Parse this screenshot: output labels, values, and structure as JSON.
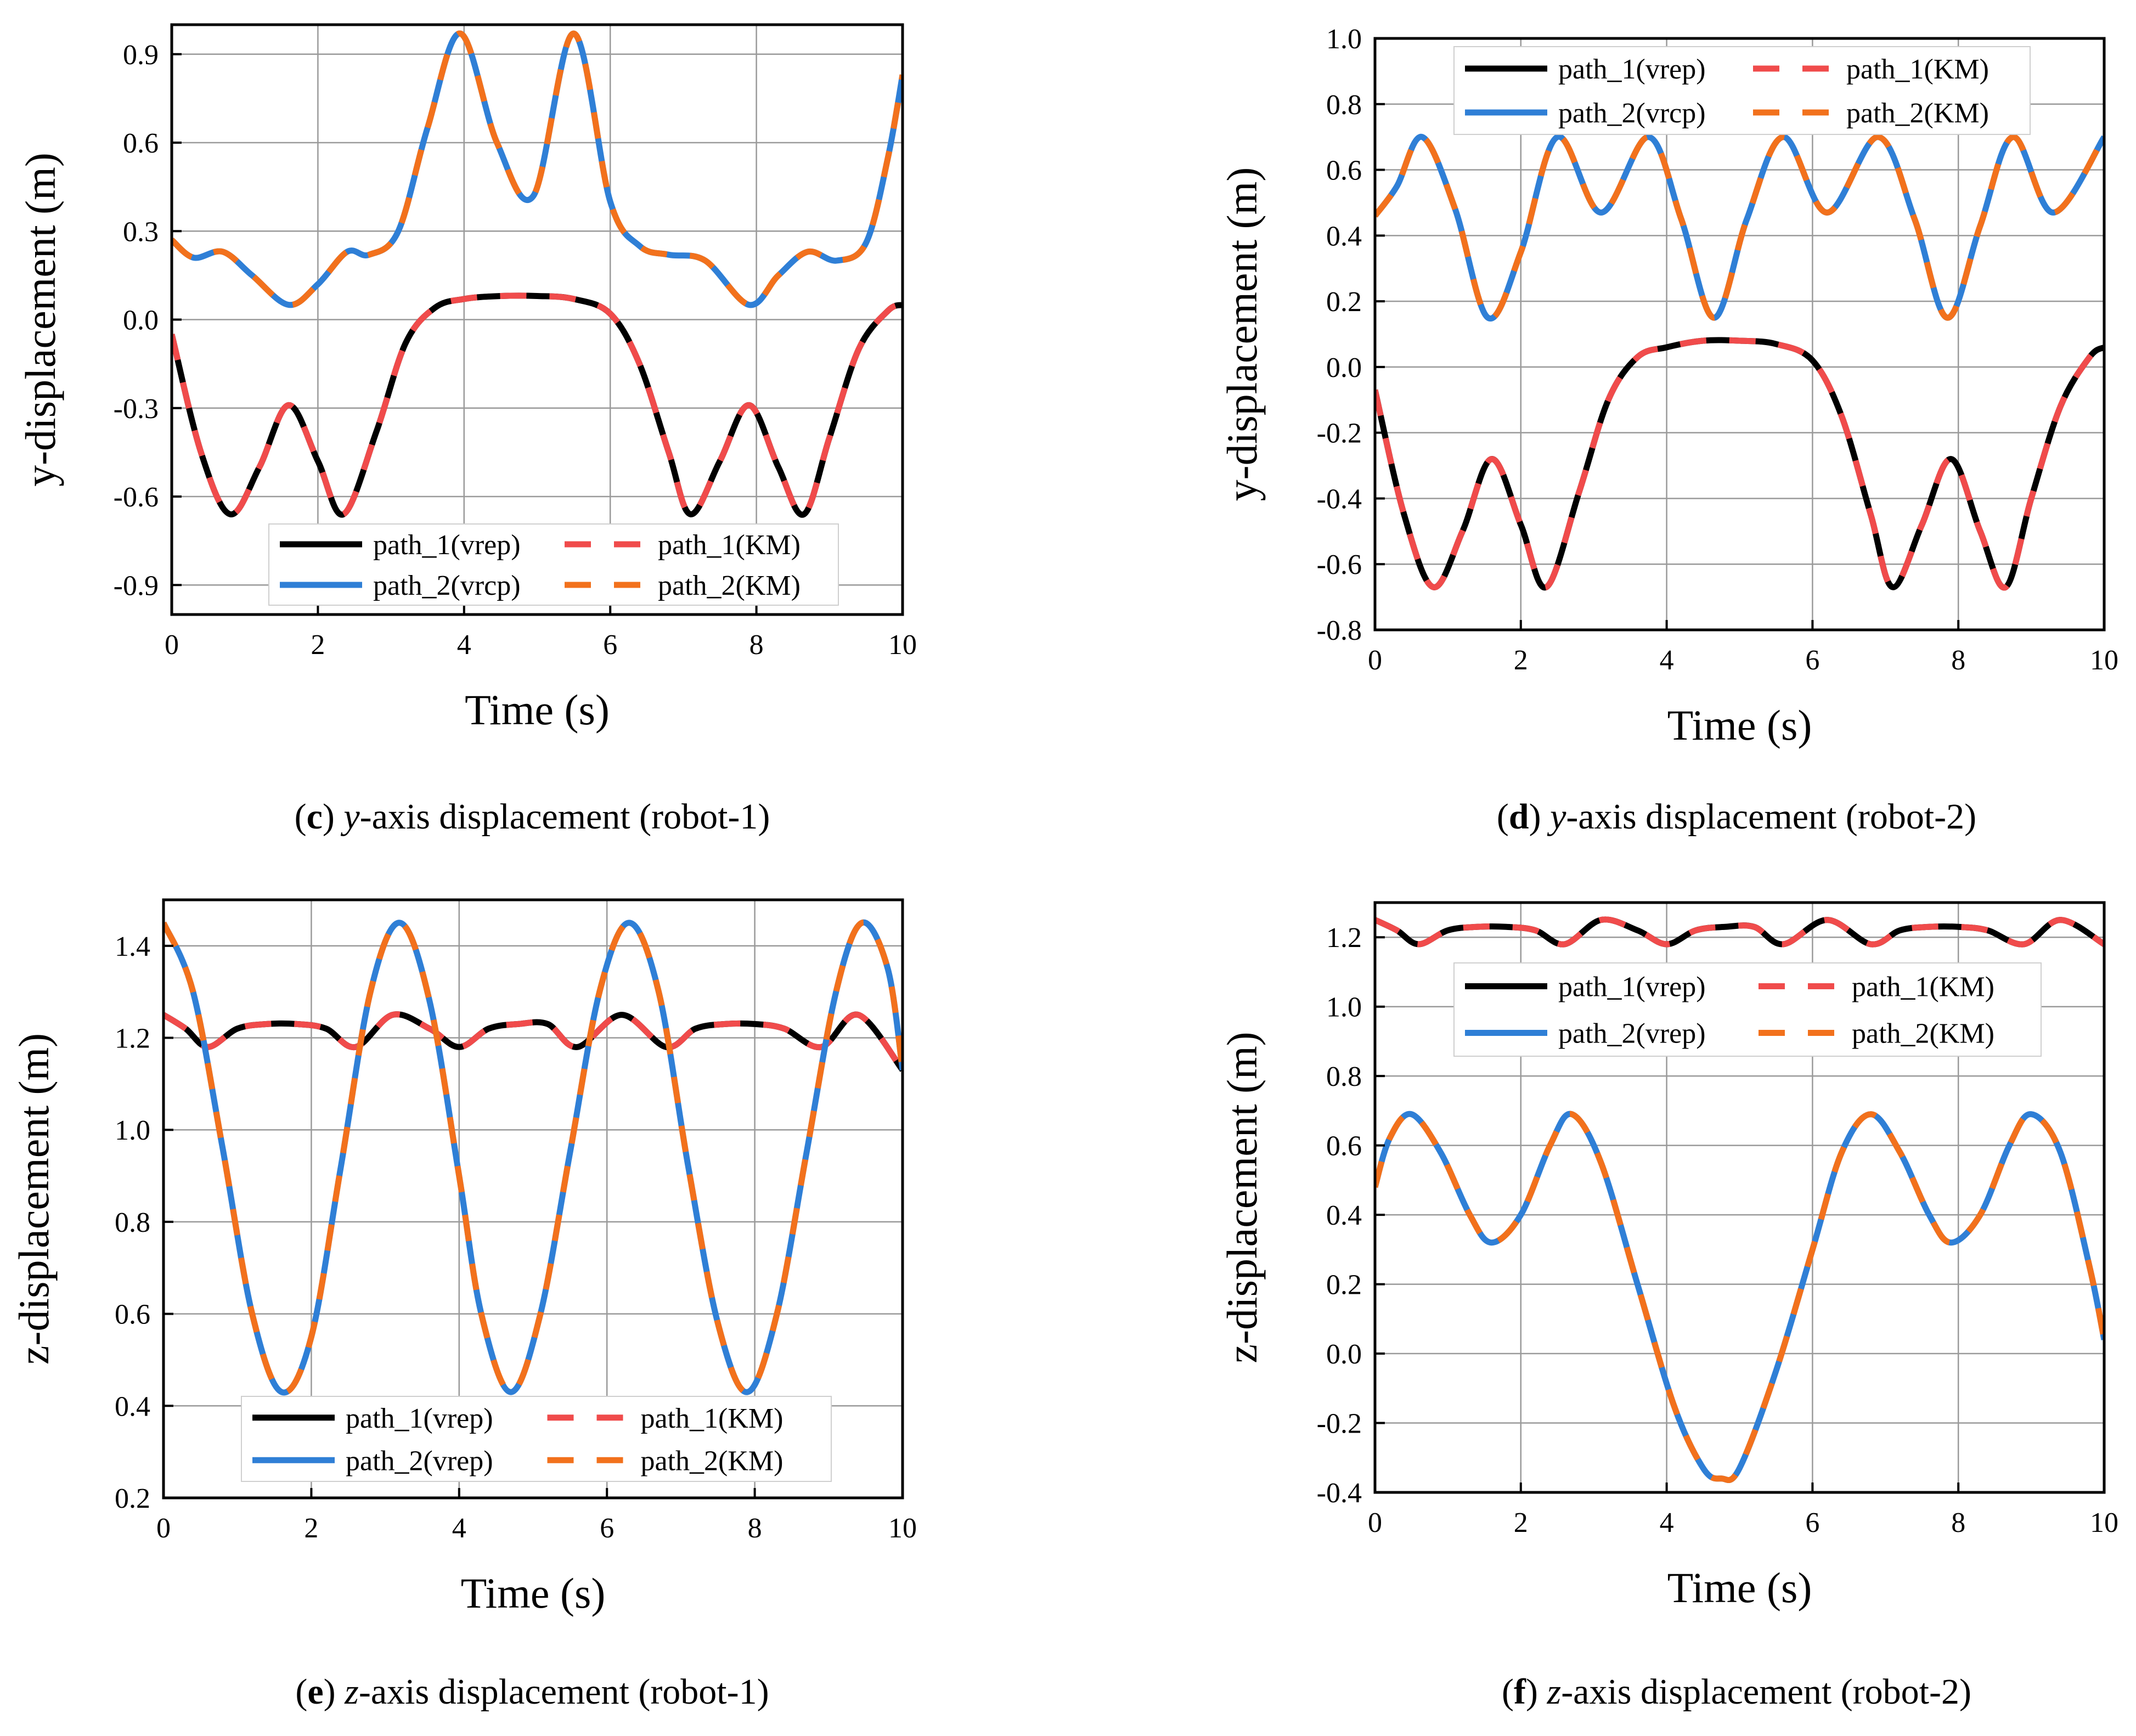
{
  "chart_data": [
    {
      "id": "c",
      "type": "line",
      "xlabel": "Time (s)",
      "ylabel": "y-displacement (m)",
      "xlim": [
        0,
        10
      ],
      "ylim": [
        -1.0,
        1.0
      ],
      "xticks": [
        "0",
        "2",
        "4",
        "6",
        "8",
        "10"
      ],
      "yticks": [
        "-0.9",
        "-0.6",
        "-0.3",
        "0.0",
        "0.3",
        "0.6",
        "0.9"
      ],
      "ytick_values": [
        -0.9,
        -0.6,
        -0.3,
        0.0,
        0.3,
        0.6,
        0.9
      ],
      "legend_position": "bottom",
      "legend": [
        "path_1(vrep)",
        "path_1(KM)",
        "path_2(vrcp)",
        "path_2(KM)"
      ],
      "caption": {
        "letter": "c",
        "axis": "y",
        "text": "-axis displacement (robot-1)"
      },
      "series": [
        {
          "name": "path_1(vrep)",
          "color": "#000000",
          "style": "solid",
          "x": [
            0,
            0.4,
            0.8,
            1.2,
            1.6,
            2.0,
            2.35,
            2.8,
            3.2,
            3.6,
            4.0,
            4.5,
            5.0,
            5.5,
            6.0,
            6.4,
            6.8,
            7.1,
            7.5,
            7.9,
            8.3,
            8.65,
            9.0,
            9.4,
            9.8,
            10.0
          ],
          "y": [
            -0.05,
            -0.45,
            -0.66,
            -0.5,
            -0.29,
            -0.48,
            -0.66,
            -0.38,
            -0.08,
            0.04,
            0.07,
            0.08,
            0.08,
            0.07,
            0.02,
            -0.15,
            -0.45,
            -0.66,
            -0.48,
            -0.29,
            -0.5,
            -0.66,
            -0.4,
            -0.1,
            0.03,
            0.05
          ]
        },
        {
          "name": "path_1(KM)",
          "color": "#f04b4b",
          "style": "dashed",
          "same_as": "path_1(vrep)"
        },
        {
          "name": "path_2(vrcp)",
          "color": "#2f7fd6",
          "style": "solid",
          "x": [
            0,
            0.3,
            0.7,
            1.1,
            1.6,
            2.0,
            2.4,
            2.7,
            3.1,
            3.5,
            3.95,
            4.45,
            4.95,
            5.5,
            6.0,
            6.4,
            6.8,
            7.3,
            7.9,
            8.3,
            8.7,
            9.1,
            9.5,
            9.8,
            10.0
          ],
          "y": [
            0.27,
            0.21,
            0.23,
            0.15,
            0.05,
            0.12,
            0.23,
            0.22,
            0.3,
            0.65,
            0.97,
            0.6,
            0.42,
            0.97,
            0.4,
            0.25,
            0.22,
            0.2,
            0.05,
            0.15,
            0.23,
            0.2,
            0.26,
            0.55,
            0.83
          ]
        },
        {
          "name": "path_2(KM)",
          "color": "#f2711c",
          "style": "dashed",
          "same_as": "path_2(vrcp)"
        }
      ]
    },
    {
      "id": "d",
      "type": "line",
      "xlabel": "Time (s)",
      "ylabel": "y-displacement (m)",
      "xlim": [
        0,
        10
      ],
      "ylim": [
        -0.8,
        1.0
      ],
      "xticks": [
        "0",
        "2",
        "4",
        "6",
        "8",
        "10"
      ],
      "yticks": [
        "-0.8",
        "-0.6",
        "-0.4",
        "-0.2",
        "0.0",
        "0.2",
        "0.4",
        "0.6",
        "0.8",
        "1.0"
      ],
      "ytick_values": [
        -0.8,
        -0.6,
        -0.4,
        -0.2,
        0.0,
        0.2,
        0.4,
        0.6,
        0.8,
        1.0
      ],
      "legend_position": "top",
      "legend": [
        "path_1(vrep)",
        "path_1(KM)",
        "path_2(vrcp)",
        "path_2(KM)"
      ],
      "caption": {
        "letter": "d",
        "axis": "y",
        "text": "-axis displacement (robot-2)"
      },
      "series": [
        {
          "name": "path_1(vrep)",
          "color": "#000000",
          "style": "solid",
          "x": [
            0,
            0.4,
            0.8,
            1.2,
            1.6,
            2.0,
            2.35,
            2.8,
            3.2,
            3.6,
            4.0,
            4.5,
            5.0,
            5.5,
            6.0,
            6.4,
            6.8,
            7.1,
            7.5,
            7.9,
            8.3,
            8.65,
            9.0,
            9.4,
            9.8,
            10.0
          ],
          "y": [
            -0.07,
            -0.45,
            -0.67,
            -0.5,
            -0.28,
            -0.48,
            -0.67,
            -0.38,
            -0.1,
            0.03,
            0.06,
            0.08,
            0.08,
            0.07,
            0.02,
            -0.15,
            -0.45,
            -0.67,
            -0.48,
            -0.28,
            -0.5,
            -0.67,
            -0.4,
            -0.12,
            0.03,
            0.06
          ]
        },
        {
          "name": "path_1(KM)",
          "color": "#f04b4b",
          "style": "dashed",
          "same_as": "path_1(vrep)"
        },
        {
          "name": "path_2(vrcp)",
          "color": "#2f7fd6",
          "style": "solid",
          "x": [
            0,
            0.3,
            0.65,
            1.1,
            1.55,
            2.0,
            2.5,
            3.1,
            3.75,
            4.2,
            4.65,
            5.1,
            5.6,
            6.2,
            6.9,
            7.4,
            7.85,
            8.3,
            8.75,
            9.3,
            10.0
          ],
          "y": [
            0.46,
            0.55,
            0.7,
            0.48,
            0.15,
            0.35,
            0.7,
            0.47,
            0.7,
            0.45,
            0.15,
            0.45,
            0.7,
            0.47,
            0.7,
            0.45,
            0.15,
            0.43,
            0.7,
            0.47,
            0.7
          ]
        },
        {
          "name": "path_2(KM)",
          "color": "#f2711c",
          "style": "dashed",
          "same_as": "path_2(vrcp)"
        }
      ]
    },
    {
      "id": "e",
      "type": "line",
      "xlabel": "Time (s)",
      "ylabel": "z-displacement (m)",
      "xlim": [
        0,
        10
      ],
      "ylim": [
        0.2,
        1.5
      ],
      "xticks": [
        "0",
        "2",
        "4",
        "6",
        "8",
        "10"
      ],
      "yticks": [
        "0.2",
        "0.4",
        "0.6",
        "0.8",
        "1.0",
        "1.2",
        "1.4"
      ],
      "ytick_values": [
        0.2,
        0.4,
        0.6,
        0.8,
        1.0,
        1.2,
        1.4
      ],
      "legend_position": "bottom",
      "legend": [
        "path_1(vrep)",
        "path_1(KM)",
        "path_2(vrep)",
        "path_2(KM)"
      ],
      "caption": {
        "letter": "e",
        "axis": "z",
        "text": "-axis displacement (robot-1)"
      },
      "series": [
        {
          "name": "path_1(vrep)",
          "color": "#000000",
          "style": "solid",
          "x": [
            0,
            0.3,
            0.6,
            1.0,
            1.4,
            1.8,
            2.2,
            2.6,
            3.1,
            3.6,
            4.0,
            4.4,
            4.8,
            5.2,
            5.6,
            6.2,
            6.8,
            7.2,
            7.6,
            8.0,
            8.4,
            8.9,
            9.4,
            10.0
          ],
          "y": [
            1.25,
            1.22,
            1.18,
            1.22,
            1.23,
            1.23,
            1.22,
            1.18,
            1.25,
            1.22,
            1.18,
            1.22,
            1.23,
            1.23,
            1.18,
            1.25,
            1.18,
            1.22,
            1.23,
            1.23,
            1.22,
            1.18,
            1.25,
            1.13
          ]
        },
        {
          "name": "path_1(KM)",
          "color": "#f04b4b",
          "style": "dashed",
          "same_as": "path_1(vrep)"
        },
        {
          "name": "path_2(vrep)",
          "color": "#2f7fd6",
          "style": "solid",
          "x": [
            0,
            0.4,
            0.8,
            1.2,
            1.6,
            2.0,
            2.4,
            2.8,
            3.2,
            3.6,
            4.0,
            4.3,
            4.7,
            5.1,
            5.5,
            5.9,
            6.3,
            6.7,
            7.1,
            7.5,
            7.9,
            8.3,
            8.7,
            9.1,
            9.45,
            9.8,
            10.0
          ],
          "y": [
            1.45,
            1.3,
            0.96,
            0.6,
            0.43,
            0.55,
            0.92,
            1.3,
            1.45,
            1.28,
            0.9,
            0.6,
            0.43,
            0.6,
            0.95,
            1.3,
            1.45,
            1.3,
            0.92,
            0.58,
            0.43,
            0.6,
            0.95,
            1.3,
            1.45,
            1.35,
            1.13
          ]
        },
        {
          "name": "path_2(KM)",
          "color": "#f2711c",
          "style": "dashed",
          "same_as": "path_2(vrep)"
        }
      ]
    },
    {
      "id": "f",
      "type": "line",
      "xlabel": "Time (s)",
      "ylabel": "z-displacement (m)",
      "xlim": [
        0,
        10
      ],
      "ylim": [
        -0.4,
        1.3
      ],
      "xticks": [
        "0",
        "2",
        "4",
        "6",
        "8",
        "10"
      ],
      "yticks": [
        "-0.4",
        "-0.2",
        "0.0",
        "0.2",
        "0.4",
        "0.6",
        "0.8",
        "1.0",
        "1.2"
      ],
      "ytick_values": [
        -0.4,
        -0.2,
        0.0,
        0.2,
        0.4,
        0.6,
        0.8,
        1.0,
        1.2
      ],
      "legend_position": "top",
      "legend": [
        "path_1(vrep)",
        "path_1(KM)",
        "path_2(vrep)",
        "path_2(KM)"
      ],
      "caption": {
        "letter": "f",
        "axis": "z",
        "text": "-axis displacement (robot-2)"
      },
      "series": [
        {
          "name": "path_1(vrep)",
          "color": "#000000",
          "style": "solid",
          "x": [
            0,
            0.3,
            0.6,
            1.0,
            1.4,
            1.8,
            2.2,
            2.6,
            3.1,
            3.6,
            4.0,
            4.4,
            4.8,
            5.2,
            5.6,
            6.2,
            6.8,
            7.2,
            7.6,
            8.0,
            8.4,
            8.9,
            9.4,
            10.0
          ],
          "y": [
            1.25,
            1.22,
            1.18,
            1.22,
            1.23,
            1.23,
            1.22,
            1.18,
            1.25,
            1.22,
            1.18,
            1.22,
            1.23,
            1.23,
            1.18,
            1.25,
            1.18,
            1.22,
            1.23,
            1.23,
            1.22,
            1.18,
            1.25,
            1.18
          ]
        },
        {
          "name": "path_1(KM)",
          "color": "#f04b4b",
          "style": "dashed",
          "same_as": "path_1(vrep)"
        },
        {
          "name": "path_2(vrep)",
          "color": "#2f7fd6",
          "style": "solid",
          "x": [
            0,
            0.2,
            0.5,
            0.9,
            1.3,
            1.6,
            2.0,
            2.4,
            2.7,
            3.1,
            3.6,
            4.1,
            4.5,
            4.75,
            5.0,
            5.5,
            6.0,
            6.4,
            6.8,
            7.2,
            7.6,
            7.9,
            8.3,
            8.7,
            9.0,
            9.4,
            9.8,
            10.0
          ],
          "y": [
            0.48,
            0.62,
            0.69,
            0.58,
            0.4,
            0.32,
            0.4,
            0.6,
            0.69,
            0.55,
            0.2,
            -0.15,
            -0.33,
            -0.36,
            -0.33,
            -0.05,
            0.3,
            0.58,
            0.69,
            0.58,
            0.4,
            0.32,
            0.4,
            0.6,
            0.69,
            0.58,
            0.25,
            0.04
          ]
        },
        {
          "name": "path_2(KM)",
          "color": "#f2711c",
          "style": "dashed",
          "same_as": "path_2(vrep)"
        }
      ]
    }
  ]
}
